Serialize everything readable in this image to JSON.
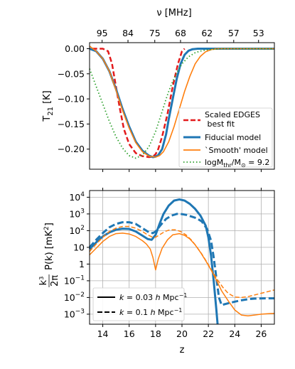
{
  "chart_data": [
    {
      "type": "line",
      "top_axis": {
        "label": "ν [MHz]",
        "tick_labels": [
          "95",
          "84",
          "75",
          "68",
          "62",
          "57",
          "53"
        ],
        "tick_z": [
          13.95,
          15.91,
          17.94,
          19.89,
          21.9,
          23.92,
          25.8
        ]
      },
      "ylabel": "T_21 [K]",
      "ylabel_main": "T",
      "ylabel_sub": "21",
      "ylabel_unit": " [K]",
      "xlim": [
        13,
        27
      ],
      "ylim": [
        -0.24,
        0.012
      ],
      "yticks": [
        0.0,
        -0.05,
        -0.1,
        -0.15,
        -0.2
      ],
      "ytick_labels": [
        "0.00",
        "−0.05",
        "−0.10",
        "−0.15",
        "−0.20"
      ],
      "grid": false,
      "legend": {
        "position": "lower-right",
        "entries": [
          {
            "label_line1": "Scaled EDGES",
            "label_line2": " best fit",
            "color": "#e31a1c",
            "style": "dashed"
          },
          {
            "label": "Fiducial model",
            "color": "#1f77b4",
            "style": "solid-thick"
          },
          {
            "label": "`Smooth' model",
            "color": "#ff7f0e",
            "style": "solid"
          },
          {
            "label_main": "logM",
            "label_sub": "thr",
            "label_mid": "/M",
            "label_sub2": "⊙",
            "label_end": " = 9.2",
            "color": "#2ca02c",
            "style": "dotted"
          }
        ]
      },
      "series": [
        {
          "name": "Scaled EDGES best fit",
          "color": "#e31a1c",
          "style": "dashed",
          "x": [
            13.2,
            14.0,
            14.4,
            14.7,
            15.0,
            15.3,
            15.6,
            16.0,
            16.5,
            17.0,
            17.5,
            17.8,
            18.0,
            18.2,
            18.5,
            18.9,
            19.3,
            19.7,
            20.0,
            20.2
          ],
          "y": [
            0.0,
            0.0,
            -0.005,
            -0.03,
            -0.075,
            -0.12,
            -0.16,
            -0.19,
            -0.208,
            -0.214,
            -0.216,
            -0.215,
            -0.21,
            -0.2,
            -0.175,
            -0.13,
            -0.075,
            -0.03,
            -0.005,
            0.0
          ]
        },
        {
          "name": "Fiducial model",
          "color": "#1f77b4",
          "style": "solid",
          "x": [
            13.0,
            13.5,
            14.0,
            14.5,
            15.0,
            15.5,
            16.0,
            16.5,
            17.0,
            17.5,
            17.8,
            18.0,
            18.2,
            18.5,
            18.8,
            19.0,
            19.3,
            19.6,
            19.9,
            20.2,
            20.5,
            20.8,
            21.2,
            21.6,
            22.0,
            23.0,
            27.0
          ],
          "y": [
            0.0,
            -0.005,
            -0.02,
            -0.045,
            -0.08,
            -0.12,
            -0.155,
            -0.185,
            -0.203,
            -0.213,
            -0.216,
            -0.215,
            -0.212,
            -0.2,
            -0.17,
            -0.14,
            -0.1,
            -0.06,
            -0.03,
            -0.012,
            -0.004,
            -0.001,
            0.0,
            0.0,
            0.0,
            0.0,
            0.0
          ]
        },
        {
          "name": "`Smooth' model",
          "color": "#ff7f0e",
          "style": "solid",
          "x": [
            13.0,
            13.5,
            14.0,
            14.5,
            15.0,
            15.5,
            16.0,
            16.5,
            17.0,
            17.5,
            18.0,
            18.3,
            18.6,
            19.0,
            19.4,
            19.8,
            20.2,
            20.6,
            21.0,
            21.4,
            21.8,
            22.2,
            22.6,
            23.0,
            24.0,
            27.0
          ],
          "y": [
            0.005,
            -0.005,
            -0.02,
            -0.045,
            -0.082,
            -0.123,
            -0.158,
            -0.187,
            -0.205,
            -0.214,
            -0.216,
            -0.213,
            -0.205,
            -0.185,
            -0.155,
            -0.12,
            -0.085,
            -0.055,
            -0.03,
            -0.015,
            -0.006,
            -0.002,
            0.0,
            0.0,
            0.0,
            0.0
          ]
        },
        {
          "name": "logM_thr/M_sun = 9.2",
          "color": "#2ca02c",
          "style": "dotted",
          "x": [
            13.0,
            13.5,
            14.0,
            14.5,
            15.0,
            15.5,
            16.0,
            16.5,
            17.0,
            17.5,
            18.0,
            18.5,
            18.8,
            19.0,
            19.3,
            19.6,
            20.0,
            20.5,
            21.0,
            21.5,
            22.0,
            22.5,
            23.0,
            24.0,
            27.0
          ],
          "y": [
            -0.04,
            -0.075,
            -0.11,
            -0.145,
            -0.175,
            -0.198,
            -0.213,
            -0.218,
            -0.212,
            -0.195,
            -0.165,
            -0.125,
            -0.1,
            -0.085,
            -0.065,
            -0.048,
            -0.03,
            -0.016,
            -0.008,
            -0.004,
            -0.002,
            -0.001,
            0.0,
            0.0,
            0.0
          ]
        }
      ]
    },
    {
      "type": "line",
      "xlabel": "z",
      "ylabel": "k^3/2π P(k) [mK^2]",
      "ylabel_frac_num": "k",
      "ylabel_frac_num_sup": "3",
      "ylabel_frac_den": "2π",
      "ylabel_rest": " P(k) [mK",
      "ylabel_rest_sup": "2",
      "ylabel_close": "]",
      "yscale": "log",
      "xlim": [
        13,
        27
      ],
      "ylim_log10": [
        -3.6,
        4.4
      ],
      "xticks": [
        14,
        16,
        18,
        20,
        22,
        24,
        26
      ],
      "xtick_labels": [
        "14",
        "16",
        "18",
        "20",
        "22",
        "24",
        "26"
      ],
      "yticks_log10": [
        4,
        3,
        2,
        1,
        0,
        -1,
        -2,
        -3
      ],
      "ytick_labels": [
        {
          "base": "10",
          "exp": "4"
        },
        {
          "base": "10",
          "exp": "3"
        },
        {
          "base": "10",
          "exp": "2"
        },
        {
          "base": "10",
          "exp": ""
        },
        {
          "base": "1",
          "exp": ""
        },
        {
          "base": "10",
          "exp": "−1"
        },
        {
          "base": "10",
          "exp": "−2"
        },
        {
          "base": "10",
          "exp": "−3"
        }
      ],
      "grid": true,
      "legend": {
        "position": "lower-left",
        "entries": [
          {
            "label_pre": "k",
            "label_mid": " = 0.03 ",
            "label_h": "h",
            "label_unit": " Mpc",
            "label_sup": "−1",
            "style": "solid"
          },
          {
            "label_pre": "k",
            "label_mid": " = 0.1 ",
            "label_h": "h",
            "label_unit": " Mpc",
            "label_sup": "−1",
            "style": "dashed"
          }
        ]
      },
      "series": [
        {
          "name": "Fiducial k=0.03",
          "color": "#1f77b4",
          "style": "solid",
          "x": [
            13.0,
            13.5,
            14.0,
            14.5,
            15.0,
            15.5,
            16.0,
            16.5,
            17.0,
            17.4,
            17.7,
            18.0,
            18.3,
            18.6,
            19.0,
            19.4,
            19.8,
            20.2,
            20.6,
            21.0,
            21.4,
            21.8,
            22.0,
            22.2,
            22.4,
            22.6,
            22.7
          ],
          "log10y": [
            0.9,
            1.3,
            1.65,
            1.9,
            2.05,
            2.12,
            2.1,
            1.95,
            1.7,
            1.5,
            1.45,
            1.75,
            2.4,
            3.0,
            3.5,
            3.8,
            3.87,
            3.8,
            3.6,
            3.3,
            2.9,
            2.3,
            1.6,
            0.5,
            -1.0,
            -2.7,
            -3.6
          ]
        },
        {
          "name": "Fiducial k=0.1",
          "color": "#1f77b4",
          "style": "dashed",
          "x": [
            13.0,
            13.5,
            14.0,
            14.5,
            15.0,
            15.5,
            16.0,
            16.5,
            17.0,
            17.5,
            17.8,
            18.0,
            18.4,
            18.8,
            19.2,
            19.6,
            19.9,
            20.3,
            20.7,
            21.1,
            21.5,
            21.9,
            22.2,
            22.4,
            22.6,
            22.8,
            23.0,
            23.5,
            24.0,
            24.5,
            25.0,
            25.5,
            26.0,
            26.5,
            27.0
          ],
          "log10y": [
            1.0,
            1.45,
            1.85,
            2.2,
            2.4,
            2.5,
            2.5,
            2.4,
            2.15,
            1.9,
            1.85,
            1.95,
            2.35,
            2.7,
            2.9,
            3.0,
            3.0,
            2.95,
            2.85,
            2.75,
            2.55,
            2.1,
            1.4,
            0.4,
            -0.8,
            -2.0,
            -2.45,
            -2.35,
            -2.25,
            -2.17,
            -2.1,
            -2.07,
            -2.06,
            -2.05,
            -2.05
          ]
        },
        {
          "name": "Smooth k=0.03",
          "color": "#ff7f0e",
          "style": "solid",
          "x": [
            13.0,
            13.5,
            14.0,
            14.5,
            15.0,
            15.5,
            16.0,
            16.5,
            17.0,
            17.3,
            17.6,
            17.8,
            18.0,
            18.2,
            18.5,
            18.9,
            19.3,
            19.8,
            20.2,
            20.6,
            21.0,
            21.4,
            21.8,
            22.2,
            22.6,
            23.0,
            23.5,
            24.0,
            24.5,
            25.0,
            25.5,
            26.0,
            26.5,
            27.0
          ],
          "log10y": [
            0.55,
            0.95,
            1.35,
            1.65,
            1.82,
            1.85,
            1.8,
            1.65,
            1.4,
            1.2,
            0.9,
            0.4,
            -0.35,
            0.3,
            0.95,
            1.45,
            1.75,
            1.82,
            1.72,
            1.5,
            1.15,
            0.7,
            0.2,
            -0.35,
            -0.95,
            -1.6,
            -2.2,
            -2.75,
            -3.05,
            -3.1,
            -3.05,
            -3.0,
            -2.97,
            -2.95
          ]
        },
        {
          "name": "Smooth k=0.1",
          "color": "#ff7f0e",
          "style": "dashed",
          "x": [
            13.0,
            13.5,
            14.0,
            14.5,
            15.0,
            15.5,
            16.0,
            16.5,
            17.0,
            17.4,
            17.8,
            18.0,
            18.3,
            18.7,
            19.1,
            19.5,
            19.9,
            20.3,
            20.7,
            21.1,
            21.5,
            21.9,
            22.3,
            22.7,
            23.1,
            23.5,
            24.0,
            24.5,
            25.0,
            25.5,
            26.0,
            26.5,
            27.0
          ],
          "log10y": [
            0.75,
            1.2,
            1.6,
            1.95,
            2.15,
            2.25,
            2.25,
            2.15,
            1.95,
            1.75,
            1.6,
            1.6,
            1.75,
            1.95,
            2.05,
            2.05,
            1.95,
            1.75,
            1.45,
            1.05,
            0.6,
            0.1,
            -0.45,
            -0.95,
            -1.4,
            -1.75,
            -1.98,
            -2.0,
            -1.95,
            -1.85,
            -1.75,
            -1.65,
            -1.55
          ]
        }
      ]
    }
  ]
}
